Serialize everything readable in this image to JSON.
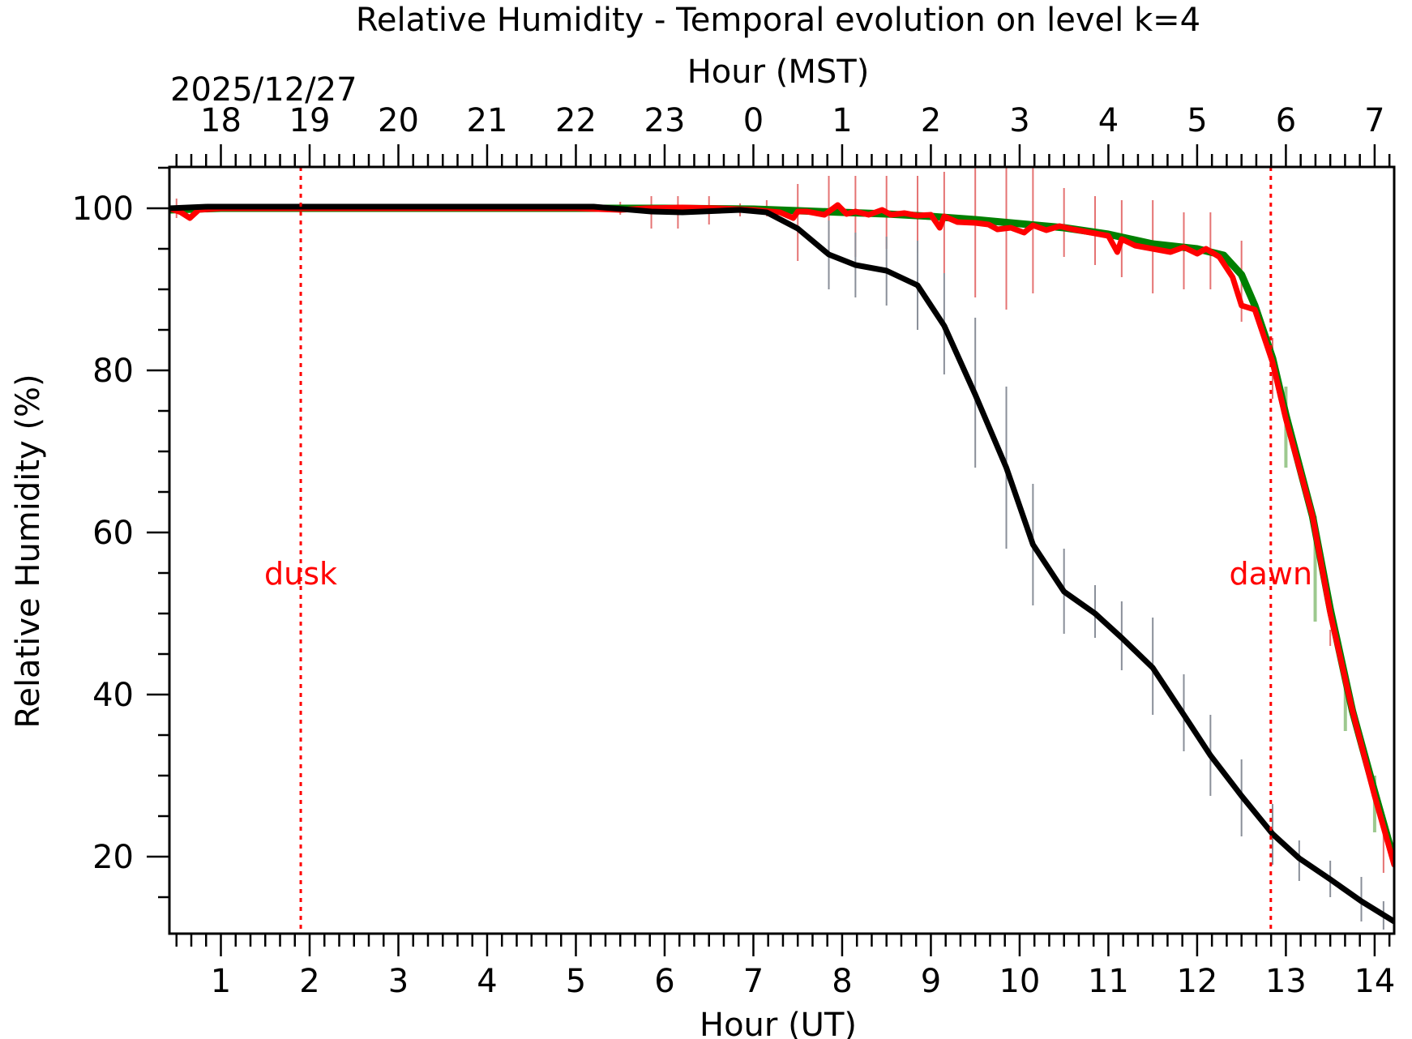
{
  "chart_data": {
    "type": "line",
    "title": "Relative Humidity - Temporal evolution on level k=4",
    "xlabel": "Hour (UT)",
    "x2label": "Hour (MST)",
    "ylabel": "Relative Humidity (%)",
    "date_label": "2025/12/27",
    "xlim": [
      0.42,
      14.22
    ],
    "ylim": [
      10.5,
      105.1
    ],
    "x_ticks": [
      1,
      2,
      3,
      4,
      5,
      6,
      7,
      8,
      9,
      10,
      11,
      12,
      13,
      14
    ],
    "x_tick_labels": [
      "1",
      "2",
      "3",
      "4",
      "5",
      "6",
      "7",
      "8",
      "9",
      "10",
      "11",
      "12",
      "13",
      "14"
    ],
    "x2_offset_hours": -7,
    "x2_ticks_ut": [
      1,
      2,
      3,
      4,
      5,
      6,
      7,
      8,
      9,
      10,
      11,
      12,
      13,
      14
    ],
    "x2_tick_labels": [
      "18",
      "19",
      "20",
      "21",
      "22",
      "23",
      "0",
      "1",
      "2",
      "3",
      "4",
      "5",
      "6",
      "7"
    ],
    "y_ticks": [
      20,
      40,
      60,
      80,
      100
    ],
    "y_tick_labels": [
      "20",
      "40",
      "60",
      "80",
      "100"
    ],
    "grid": false,
    "annotations": [
      {
        "label": "dusk",
        "x": 1.9,
        "y": 55,
        "color": "#ff0000",
        "line": "dotted"
      },
      {
        "label": "dawn",
        "x": 12.83,
        "y": 55,
        "color": "#ff0000",
        "line": "dotted"
      }
    ],
    "series": [
      {
        "name": "smooth-green",
        "color": "#008000",
        "x": [
          0.42,
          1.0,
          5.0,
          6.0,
          7.0,
          7.5,
          8.0,
          8.5,
          9.0,
          9.5,
          10.0,
          10.5,
          11.0,
          11.5,
          12.0,
          12.3,
          12.5,
          12.65,
          12.85,
          13.0,
          13.3,
          13.5,
          13.75,
          14.0,
          14.22
        ],
        "values": [
          99.8,
          100,
          100,
          100,
          99.9,
          99.7,
          99.5,
          99.3,
          99.0,
          98.6,
          98.1,
          97.6,
          96.8,
          95.6,
          95.0,
          94.2,
          91.8,
          88.0,
          81.5,
          74.5,
          62.0,
          50.5,
          38.0,
          28.0,
          19.5
        ]
      },
      {
        "name": "noisy-red",
        "color": "#ff0000",
        "x": [
          0.42,
          0.55,
          0.65,
          0.75,
          1.0,
          5.0,
          5.5,
          5.8,
          6.2,
          6.6,
          7.0,
          7.3,
          7.45,
          7.5,
          7.6,
          7.8,
          7.95,
          8.05,
          8.15,
          8.3,
          8.45,
          8.55,
          8.7,
          8.85,
          9.0,
          9.1,
          9.15,
          9.3,
          9.5,
          9.65,
          9.75,
          9.9,
          10.05,
          10.15,
          10.3,
          10.45,
          10.6,
          10.8,
          11.0,
          11.1,
          11.15,
          11.3,
          11.5,
          11.7,
          11.85,
          12.0,
          12.1,
          12.25,
          12.4,
          12.5,
          12.65,
          12.85,
          13.0,
          13.3,
          13.5,
          13.75,
          14.0,
          14.22
        ],
        "values": [
          100,
          99.5,
          98.8,
          99.8,
          100,
          100,
          99.8,
          100,
          100.1,
          100,
          99.8,
          99.5,
          98.8,
          99.6,
          99.6,
          99.2,
          100.4,
          99.3,
          99.6,
          99.2,
          99.8,
          99.2,
          99.4,
          99.1,
          99.2,
          97.6,
          99.0,
          98.3,
          98.2,
          98.0,
          97.4,
          97.6,
          97.0,
          97.9,
          97.3,
          97.8,
          97.4,
          97.0,
          96.6,
          94.6,
          96.2,
          95.4,
          95.0,
          94.6,
          95.2,
          94.4,
          95.0,
          94.0,
          91.5,
          88.0,
          87.5,
          81.0,
          74.0,
          62.0,
          50.0,
          38.0,
          27.5,
          19.0
        ]
      },
      {
        "name": "black-mean",
        "color": "#000000",
        "x": [
          0.42,
          0.85,
          5.2,
          5.85,
          6.2,
          6.85,
          7.15,
          7.5,
          7.85,
          8.15,
          8.5,
          8.85,
          9.15,
          9.5,
          9.85,
          10.15,
          10.5,
          10.85,
          11.15,
          11.5,
          11.85,
          12.15,
          12.5,
          12.85,
          13.15,
          13.5,
          13.85,
          14.22
        ],
        "values": [
          100,
          100.2,
          100.2,
          99.6,
          99.5,
          99.8,
          99.5,
          97.5,
          94.3,
          93.0,
          92.3,
          90.5,
          85.5,
          77.0,
          68.0,
          58.5,
          52.7,
          50.0,
          47.0,
          43.3,
          37.5,
          32.5,
          27.5,
          22.8,
          19.8,
          17.2,
          14.5,
          12.0
        ]
      }
    ],
    "error_bars": [
      {
        "name": "red-errorbars",
        "color": "#e57373",
        "x": [
          0.5,
          5.5,
          5.85,
          6.15,
          6.5,
          6.85,
          7.15,
          7.5,
          7.85,
          8.15,
          8.5,
          8.85,
          9.15,
          9.5,
          9.85,
          10.15,
          10.5,
          10.85,
          11.15,
          11.5,
          11.85,
          12.15,
          12.5,
          12.85,
          13.5,
          14.1
        ],
        "low": [
          98.8,
          99.2,
          97.5,
          97.5,
          98.0,
          99.0,
          99.0,
          93.5,
          94.0,
          94.0,
          95.0,
          94.5,
          92.0,
          89.0,
          87.5,
          89.5,
          94.0,
          93.0,
          91.5,
          89.5,
          90.0,
          90.0,
          86.0,
          76.5,
          46.0,
          18.0
        ],
        "high": [
          101.2,
          100.8,
          101.5,
          101.5,
          101.5,
          100.6,
          101.0,
          103.0,
          104.0,
          104.0,
          104.0,
          104.0,
          104.5,
          105.0,
          105.0,
          105.0,
          102.5,
          101.5,
          101.0,
          101.0,
          99.5,
          99.5,
          96.0,
          84.0,
          48.0,
          23.5
        ]
      },
      {
        "name": "green-errorbars",
        "color": "#9dc98f",
        "x": [
          13.0,
          13.33,
          13.67,
          14.0
        ],
        "low": [
          68.0,
          49.0,
          35.5,
          23.0
        ],
        "high": [
          78.0,
          62.0,
          42.5,
          30.0
        ]
      },
      {
        "name": "grey-errorbars",
        "color": "#8a8f99",
        "x": [
          7.85,
          8.15,
          8.5,
          8.85,
          9.15,
          9.5,
          9.85,
          10.15,
          10.5,
          10.85,
          11.15,
          11.5,
          11.85,
          12.15,
          12.5,
          12.85,
          13.15,
          13.5,
          13.85,
          14.1
        ],
        "low": [
          90.0,
          89.0,
          88.0,
          85.0,
          79.5,
          68.0,
          58.0,
          51.0,
          47.5,
          47.0,
          43.0,
          37.5,
          33.0,
          27.5,
          22.5,
          19.0,
          17.0,
          15.0,
          12.0,
          11.0
        ],
        "high": [
          98.5,
          97.0,
          96.5,
          96.0,
          92.0,
          86.5,
          78.0,
          66.0,
          58.0,
          53.5,
          51.5,
          49.5,
          42.5,
          37.5,
          32.0,
          26.5,
          22.0,
          19.5,
          17.5,
          14.5
        ]
      }
    ]
  }
}
